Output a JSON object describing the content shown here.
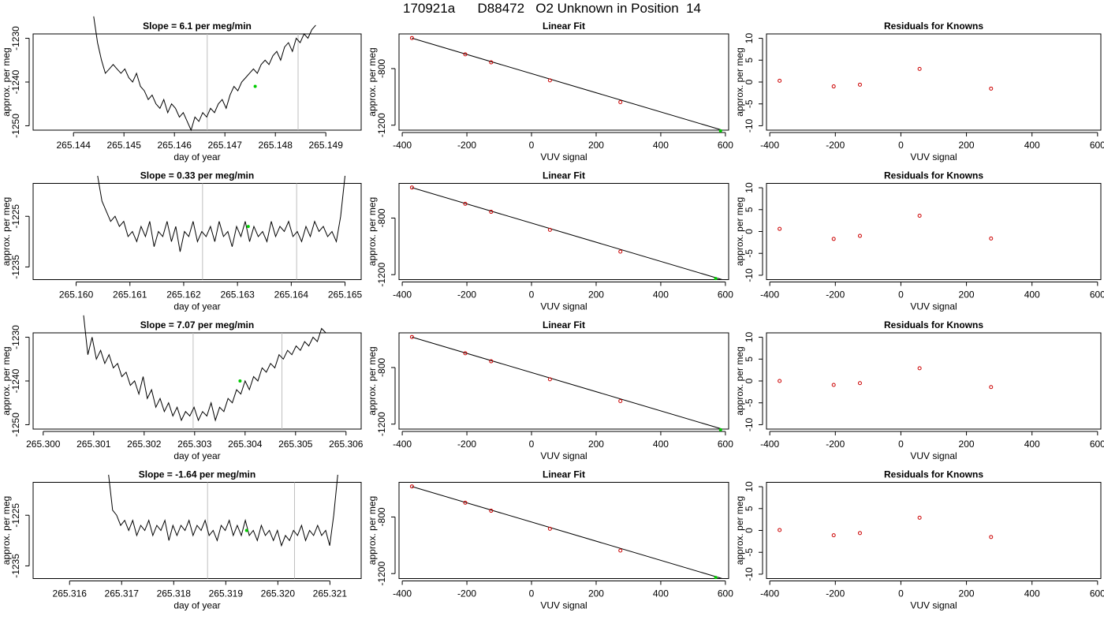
{
  "page_title": "170921a      D88472   O2 Unknown in Position  14",
  "colors": {
    "line": "#000000",
    "known_point": "#cc0000",
    "unknown_point": "#00cc00",
    "vline": "#bfbfbf"
  },
  "chart_data": [
    {
      "type": "line",
      "row": 0,
      "panel": "time",
      "title": "Slope =  6.1  per meg/min",
      "xlabel": "day of year",
      "ylabel": "approx. per meg",
      "xlim": [
        265.1432,
        265.1497
      ],
      "ylim": [
        -1251,
        -1229
      ],
      "xticks": [
        265.144,
        265.145,
        265.146,
        265.147,
        265.148,
        265.149
      ],
      "xtick_labels": [
        "265.144",
        "265.145",
        "265.146",
        "265.147",
        "265.148",
        "265.149"
      ],
      "yticks": [
        -1230,
        -1240,
        -1250
      ],
      "ytick_labels": [
        "-1230",
        "-1240",
        "-1250"
      ],
      "vlines": [
        265.14665,
        265.14845
      ],
      "series": [
        {
          "x_start": 265.1444,
          "x_end": 265.1488,
          "y": [
            -1225,
            -1231,
            -1235,
            -1238,
            -1237,
            -1236,
            -1237,
            -1238,
            -1237,
            -1239,
            -1240,
            -1238,
            -1241,
            -1242,
            -1244,
            -1243,
            -1245,
            -1246,
            -1244,
            -1247,
            -1245,
            -1246,
            -1248,
            -1247,
            -1249,
            -1251,
            -1248,
            -1249,
            -1247,
            -1248,
            -1246,
            -1247,
            -1245,
            -1244,
            -1246,
            -1243,
            -1241,
            -1242,
            -1240,
            -1239,
            -1238,
            -1237,
            -1238,
            -1236,
            -1235,
            -1236,
            -1234,
            -1233,
            -1235,
            -1232,
            -1231,
            -1233,
            -1230,
            -1231,
            -1229,
            -1230,
            -1228,
            -1227
          ]
        }
      ],
      "marker": {
        "x": 265.1476,
        "y": -1241
      }
    },
    {
      "type": "scatter",
      "row": 0,
      "panel": "fit",
      "title": "Linear Fit",
      "xlabel": "VUV signal",
      "ylabel": "approx. per meg",
      "xlim": [
        -410,
        610
      ],
      "ylim": [
        -1235,
        -555
      ],
      "xticks": [
        -400,
        -200,
        0,
        200,
        400,
        600
      ],
      "xtick_labels": [
        "-400",
        "-200",
        "0",
        "200",
        "400",
        "600"
      ],
      "yticks": [
        -800,
        -1200
      ],
      "ytick_labels": [
        "-800",
        "-1200"
      ],
      "fit_line": [
        [
          -370,
          -585
        ],
        [
          590,
          -1235
        ]
      ],
      "knowns": [
        [
          -370,
          -584
        ],
        [
          -205,
          -699
        ],
        [
          -125,
          -756
        ],
        [
          57,
          -883
        ],
        [
          275,
          -1037
        ]
      ],
      "unknown": [
        585,
        -1240
      ]
    },
    {
      "type": "scatter",
      "row": 0,
      "panel": "residual",
      "title": "Residuals for Knowns",
      "xlabel": "VUV signal",
      "ylabel": "approx. per meg",
      "xlim": [
        -410,
        610
      ],
      "ylim": [
        -11,
        11
      ],
      "xticks": [
        -400,
        -200,
        0,
        200,
        400,
        600
      ],
      "xtick_labels": [
        "-400",
        "-200",
        "0",
        "200",
        "400",
        "600"
      ],
      "yticks": [
        10,
        5,
        0,
        -5,
        -10
      ],
      "ytick_labels": [
        "10",
        "5",
        "0",
        "-5",
        "-10"
      ],
      "points": [
        [
          -370,
          0.3
        ],
        [
          -205,
          -1.0
        ],
        [
          -125,
          -0.6
        ],
        [
          57,
          3.0
        ],
        [
          275,
          -1.5
        ]
      ]
    },
    {
      "type": "line",
      "row": 1,
      "panel": "time",
      "title": "Slope =  0.33  per meg/min",
      "xlabel": "day of year",
      "ylabel": "approx. per meg",
      "xlim": [
        265.1592,
        265.1653
      ],
      "ylim": [
        -1237.5,
        -1218.5
      ],
      "xticks": [
        265.16,
        265.161,
        265.162,
        265.163,
        265.164,
        265.165
      ],
      "xtick_labels": [
        "265.160",
        "265.161",
        "265.162",
        "265.163",
        "265.164",
        "265.165"
      ],
      "yticks": [
        -1225,
        -1235
      ],
      "ytick_labels": [
        "-1225",
        "-1235"
      ],
      "vlines": [
        265.16235,
        265.1641
      ],
      "series": [
        {
          "x_start": 265.1604,
          "x_end": 265.165,
          "y": [
            -1217,
            -1222,
            -1224,
            -1226,
            -1225,
            -1227,
            -1226,
            -1229,
            -1228,
            -1230,
            -1227,
            -1229,
            -1226,
            -1231,
            -1228,
            -1229,
            -1226,
            -1230,
            -1227,
            -1232,
            -1228,
            -1229,
            -1226,
            -1230,
            -1228,
            -1229,
            -1227,
            -1230,
            -1226,
            -1229,
            -1228,
            -1231,
            -1227,
            -1229,
            -1226,
            -1230,
            -1227,
            -1229,
            -1228,
            -1230,
            -1226,
            -1229,
            -1227,
            -1228,
            -1226,
            -1229,
            -1228,
            -1230,
            -1227,
            -1229,
            -1226,
            -1228,
            -1227,
            -1229,
            -1228,
            -1230,
            -1225,
            -1217
          ]
        }
      ],
      "marker": {
        "x": 265.1632,
        "y": -1227
      }
    },
    {
      "type": "scatter",
      "row": 1,
      "panel": "fit",
      "title": "Linear Fit",
      "xlabel": "VUV signal",
      "ylabel": "approx. per meg",
      "xlim": [
        -410,
        610
      ],
      "ylim": [
        -1235,
        -555
      ],
      "xticks": [
        -400,
        -200,
        0,
        200,
        400,
        600
      ],
      "xtick_labels": [
        "-400",
        "-200",
        "0",
        "200",
        "400",
        "600"
      ],
      "yticks": [
        -800,
        -1200
      ],
      "ytick_labels": [
        "-800",
        "-1200"
      ],
      "fit_line": [
        [
          -370,
          -585
        ],
        [
          590,
          -1235
        ]
      ],
      "knowns": [
        [
          -370,
          -584
        ],
        [
          -205,
          -699
        ],
        [
          -125,
          -756
        ],
        [
          57,
          -883
        ],
        [
          275,
          -1037
        ]
      ],
      "unknown": [
        570,
        -1227
      ]
    },
    {
      "type": "scatter",
      "row": 1,
      "panel": "residual",
      "title": "Residuals for Knowns",
      "xlabel": "VUV signal",
      "ylabel": "approx. per meg",
      "xlim": [
        -410,
        610
      ],
      "ylim": [
        -11,
        11
      ],
      "xticks": [
        -400,
        -200,
        0,
        200,
        400,
        600
      ],
      "xtick_labels": [
        "-400",
        "-200",
        "0",
        "200",
        "400",
        "600"
      ],
      "yticks": [
        10,
        5,
        0,
        -5,
        -10
      ],
      "ytick_labels": [
        "10",
        "5",
        "0",
        "-5",
        "-10"
      ],
      "points": [
        [
          -370,
          0.6
        ],
        [
          -205,
          -1.7
        ],
        [
          -125,
          -1.0
        ],
        [
          57,
          3.6
        ],
        [
          275,
          -1.6
        ]
      ]
    },
    {
      "type": "line",
      "row": 2,
      "panel": "time",
      "title": "Slope =  7.07  per meg/min",
      "xlabel": "day of year",
      "ylabel": "approx. per meg",
      "xlim": [
        265.2998,
        265.3063
      ],
      "ylim": [
        -1251,
        -1229
      ],
      "xticks": [
        265.3,
        265.301,
        265.302,
        265.303,
        265.304,
        265.305,
        265.306
      ],
      "xtick_labels": [
        "265.300",
        "265.301",
        "265.302",
        "265.303",
        "265.304",
        "265.305",
        "265.306"
      ],
      "yticks": [
        -1230,
        -1240,
        -1250
      ],
      "ytick_labels": [
        "-1230",
        "-1240",
        "-1250"
      ],
      "vlines": [
        265.30297,
        265.30473
      ],
      "series": [
        {
          "x_start": 265.3008,
          "x_end": 265.3056,
          "y": [
            -1225,
            -1234,
            -1230,
            -1235,
            -1233,
            -1236,
            -1234,
            -1237,
            -1236,
            -1239,
            -1238,
            -1241,
            -1240,
            -1243,
            -1239,
            -1244,
            -1242,
            -1246,
            -1244,
            -1247,
            -1245,
            -1248,
            -1246,
            -1249,
            -1247,
            -1248,
            -1246,
            -1249,
            -1247,
            -1248,
            -1245,
            -1249,
            -1246,
            -1247,
            -1244,
            -1245,
            -1242,
            -1243,
            -1240,
            -1242,
            -1239,
            -1240,
            -1237,
            -1238,
            -1236,
            -1237,
            -1234,
            -1235,
            -1233,
            -1234,
            -1232,
            -1233,
            -1231,
            -1232,
            -1230,
            -1231,
            -1228,
            -1229
          ]
        }
      ],
      "marker": {
        "x": 265.3039,
        "y": -1240
      }
    },
    {
      "type": "scatter",
      "row": 2,
      "panel": "fit",
      "title": "Linear Fit",
      "xlabel": "VUV signal",
      "ylabel": "approx. per meg",
      "xlim": [
        -410,
        610
      ],
      "ylim": [
        -1235,
        -555
      ],
      "xticks": [
        -400,
        -200,
        0,
        200,
        400,
        600
      ],
      "xtick_labels": [
        "-400",
        "-200",
        "0",
        "200",
        "400",
        "600"
      ],
      "yticks": [
        -800,
        -1200
      ],
      "ytick_labels": [
        "-800",
        "-1200"
      ],
      "fit_line": [
        [
          -370,
          -585
        ],
        [
          590,
          -1235
        ]
      ],
      "knowns": [
        [
          -370,
          -584
        ],
        [
          -205,
          -699
        ],
        [
          -125,
          -756
        ],
        [
          57,
          -883
        ],
        [
          275,
          -1037
        ]
      ],
      "unknown": [
        585,
        -1240
      ]
    },
    {
      "type": "scatter",
      "row": 2,
      "panel": "residual",
      "title": "Residuals for Knowns",
      "xlabel": "VUV signal",
      "ylabel": "approx. per meg",
      "xlim": [
        -410,
        610
      ],
      "ylim": [
        -11,
        11
      ],
      "xticks": [
        -400,
        -200,
        0,
        200,
        400,
        600
      ],
      "xtick_labels": [
        "-400",
        "-200",
        "0",
        "200",
        "400",
        "600"
      ],
      "yticks": [
        10,
        5,
        0,
        -5,
        -10
      ],
      "ytick_labels": [
        "10",
        "5",
        "0",
        "-5",
        "-10"
      ],
      "points": [
        [
          -370,
          0.0
        ],
        [
          -205,
          -0.9
        ],
        [
          -125,
          -0.5
        ],
        [
          57,
          2.9
        ],
        [
          275,
          -1.4
        ]
      ]
    },
    {
      "type": "line",
      "row": 3,
      "panel": "time",
      "title": "Slope =  -1.64  per meg/min",
      "xlabel": "day of year",
      "ylabel": "approx. per meg",
      "xlim": [
        265.3153,
        265.3216
      ],
      "ylim": [
        -1237.5,
        -1218.5
      ],
      "xticks": [
        265.316,
        265.317,
        265.318,
        265.319,
        265.32,
        265.321
      ],
      "xtick_labels": [
        "265.316",
        "265.317",
        "265.318",
        "265.319",
        "265.320",
        "265.321"
      ],
      "yticks": [
        -1225,
        -1235
      ],
      "ytick_labels": [
        "-1225",
        "-1235"
      ],
      "vlines": [
        265.31865,
        265.32032
      ],
      "series": [
        {
          "x_start": 265.31675,
          "x_end": 265.32115,
          "y": [
            -1217,
            -1224,
            -1225,
            -1227,
            -1226,
            -1228,
            -1226,
            -1229,
            -1227,
            -1228,
            -1226,
            -1229,
            -1227,
            -1228,
            -1226,
            -1230,
            -1227,
            -1229,
            -1227,
            -1228,
            -1226,
            -1229,
            -1227,
            -1228,
            -1226,
            -1229,
            -1228,
            -1230,
            -1227,
            -1228,
            -1226,
            -1229,
            -1227,
            -1229,
            -1226,
            -1229,
            -1228,
            -1230,
            -1227,
            -1229,
            -1228,
            -1230,
            -1228,
            -1231,
            -1229,
            -1230,
            -1228,
            -1229,
            -1227,
            -1230,
            -1228,
            -1229,
            -1227,
            -1229,
            -1228,
            -1231,
            -1225,
            -1217
          ]
        }
      ],
      "marker": {
        "x": 265.3194,
        "y": -1228
      }
    },
    {
      "type": "scatter",
      "row": 3,
      "panel": "fit",
      "title": "Linear Fit",
      "xlabel": "VUV signal",
      "ylabel": "approx. per meg",
      "xlim": [
        -410,
        610
      ],
      "ylim": [
        -1235,
        -555
      ],
      "xticks": [
        -400,
        -200,
        0,
        200,
        400,
        600
      ],
      "xtick_labels": [
        "-400",
        "-200",
        "0",
        "200",
        "400",
        "600"
      ],
      "yticks": [
        -800,
        -1200
      ],
      "ytick_labels": [
        "-800",
        "-1200"
      ],
      "fit_line": [
        [
          -370,
          -585
        ],
        [
          590,
          -1235
        ]
      ],
      "knowns": [
        [
          -370,
          -584
        ],
        [
          -205,
          -699
        ],
        [
          -125,
          -756
        ],
        [
          57,
          -883
        ],
        [
          275,
          -1037
        ]
      ],
      "unknown": [
        570,
        -1227
      ]
    },
    {
      "type": "scatter",
      "row": 3,
      "panel": "residual",
      "title": "Residuals for Knowns",
      "xlabel": "VUV signal",
      "ylabel": "approx. per meg",
      "xlim": [
        -410,
        610
      ],
      "ylim": [
        -11,
        11
      ],
      "xticks": [
        -400,
        -200,
        0,
        200,
        400,
        600
      ],
      "xtick_labels": [
        "-400",
        "-200",
        "0",
        "200",
        "400",
        "600"
      ],
      "yticks": [
        10,
        5,
        0,
        -5,
        -10
      ],
      "ytick_labels": [
        "10",
        "5",
        "0",
        "-5",
        "-10"
      ],
      "points": [
        [
          -370,
          0.1
        ],
        [
          -205,
          -1.1
        ],
        [
          -125,
          -0.6
        ],
        [
          57,
          2.9
        ],
        [
          275,
          -1.5
        ]
      ]
    }
  ]
}
